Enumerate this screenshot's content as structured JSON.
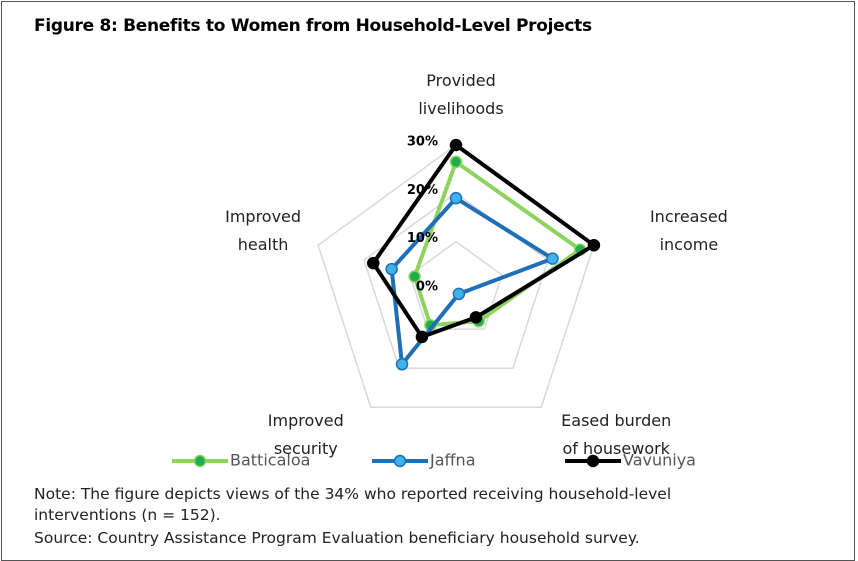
{
  "chart_data": {
    "type": "radar",
    "title": "Figure 8: Benefits to Women from Household-Level Projects",
    "categories": [
      "Provided livelihoods",
      "Increased income",
      "Eased burden of housework",
      "Improved security",
      "Improved health"
    ],
    "series": [
      {
        "name": "Batticaloa",
        "color": "#8dd35f",
        "marker_color": "#1fae4f",
        "values": [
          26.5,
          27,
          8,
          9,
          9
        ]
      },
      {
        "name": "Jaffna",
        "color": "#1f6fb8",
        "marker_color": "#3cb4ea",
        "values": [
          19,
          21,
          1,
          19,
          14
        ]
      },
      {
        "name": "Vavuniya",
        "color": "#000000",
        "marker_color": "#000000",
        "values": [
          30,
          30,
          7,
          12,
          18
        ]
      }
    ],
    "rlim": [
      0,
      30
    ],
    "rticks": [
      {
        "value": 0,
        "label": "0%"
      },
      {
        "value": 10,
        "label": "10%"
      },
      {
        "value": 20,
        "label": "20%"
      },
      {
        "value": 30,
        "label": "30%"
      }
    ],
    "grid": true,
    "legend": "bottom",
    "notes": [
      "Note: The figure depicts views of the 34% who reported receiving household-level interventions (n = 152).",
      "Source: Country Assistance Program Evaluation beneficiary household survey."
    ]
  }
}
